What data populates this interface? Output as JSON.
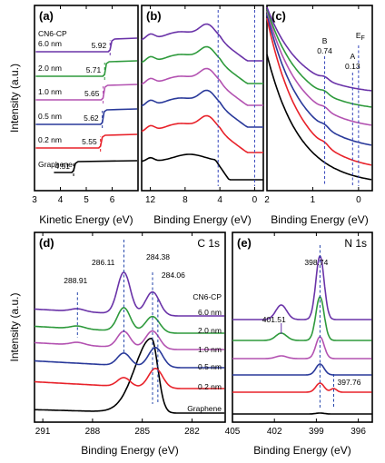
{
  "chart_data": [
    {
      "id": "a",
      "type": "line",
      "panel_label": "(a)",
      "xlabel": "Kinetic Energy (eV)",
      "ylabel": "Intensity (a.u.)",
      "xlim": [
        3,
        7
      ],
      "xticks": [
        "3",
        "4",
        "5",
        "6"
      ],
      "legend_title": "CN6-CP",
      "series": [
        {
          "name": "Graphene",
          "color": "#000000",
          "cutoff": 4.51,
          "cutoff_label": "4.51"
        },
        {
          "name": "0.2 nm",
          "color": "#e8222a",
          "cutoff": 5.55,
          "cutoff_label": "5.55"
        },
        {
          "name": "0.5 nm",
          "color": "#29399a",
          "cutoff": 5.62,
          "cutoff_label": "5.62"
        },
        {
          "name": "1.0 nm",
          "color": "#b352b1",
          "cutoff": 5.65,
          "cutoff_label": "5.65"
        },
        {
          "name": "2.0 nm",
          "color": "#2e9a3c",
          "cutoff": 5.71,
          "cutoff_label": "5.71"
        },
        {
          "name": "6.0 nm",
          "color": "#6a33a8",
          "cutoff": 5.92,
          "cutoff_label": "5.92"
        }
      ]
    },
    {
      "id": "b",
      "type": "line",
      "panel_label": "(b)",
      "xlabel": "Binding Energy (eV)",
      "xlim": [
        13,
        -1
      ],
      "xticks": [
        "12",
        "8",
        "4",
        "0"
      ],
      "xtick_values": [
        12,
        8,
        4,
        0
      ],
      "dashed_lines": [
        4.2,
        0
      ],
      "series": [
        "Graphene",
        "0.2 nm",
        "0.5 nm",
        "1.0 nm",
        "2.0 nm",
        "6.0 nm"
      ]
    },
    {
      "id": "c",
      "type": "line",
      "panel_label": "(c)",
      "xlabel": "Binding Energy (eV)",
      "xlim": [
        2,
        -0.3
      ],
      "xticks": [
        "2",
        "1",
        "0"
      ],
      "xtick_values": [
        2,
        1,
        0
      ],
      "annotations": [
        {
          "text": "B",
          "value": 0.74,
          "value_label": "0.74"
        },
        {
          "text": "A",
          "value": 0.13,
          "value_label": "0.13"
        },
        {
          "text": "E",
          "sub": "F",
          "value": 0
        }
      ],
      "series": [
        "Graphene",
        "0.2 nm",
        "0.5 nm",
        "1.0 nm",
        "2.0 nm",
        "6.0 nm"
      ]
    },
    {
      "id": "d",
      "type": "line",
      "panel_label": "(d)",
      "core_level": "C 1s",
      "xlabel": "Binding Energy (eV)",
      "ylabel": "Intensity (a.u.)",
      "xlim": [
        291.5,
        280
      ],
      "xticks": [
        "291",
        "288",
        "285",
        "282"
      ],
      "xtick_values": [
        291,
        288,
        285,
        282
      ],
      "peaks": [
        {
          "label": "288.91",
          "value": 288.91
        },
        {
          "label": "286.11",
          "value": 286.11
        },
        {
          "label": "284.38",
          "value": 284.38
        },
        {
          "label": "284.06",
          "value": 284.06
        }
      ],
      "legend_title": "CN6-CP",
      "series_labels": [
        "6.0 nm",
        "2.0 nm",
        "1.0 nm",
        "0.5 nm",
        "0.2 nm",
        "Graphene"
      ]
    },
    {
      "id": "e",
      "type": "line",
      "panel_label": "(e)",
      "core_level": "N 1s",
      "xlabel": "Binding Energy (eV)",
      "xlim": [
        405,
        395
      ],
      "xticks": [
        "405",
        "402",
        "399",
        "396"
      ],
      "xtick_values": [
        405,
        402,
        399,
        396
      ],
      "peaks": [
        {
          "label": "398.74",
          "value": 398.74
        },
        {
          "label": "401.51",
          "value": 401.51
        },
        {
          "label": "397.76",
          "value": 397.76
        }
      ]
    }
  ]
}
